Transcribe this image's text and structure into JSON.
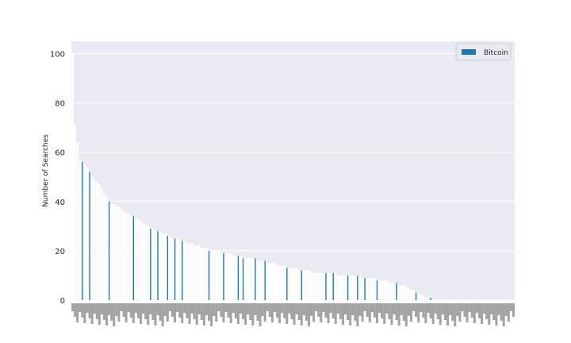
{
  "chart_data": {
    "type": "bar",
    "ylabel": "Number of Searches",
    "xlabel": "",
    "ylim": [
      0,
      105
    ],
    "yticks": [
      0,
      20,
      40,
      60,
      80,
      100
    ],
    "grid": true,
    "legend_position": "top-right",
    "series": [
      {
        "name": "Bitcoin",
        "color": "#1f77b4",
        "values": [
          100,
          71,
          64,
          57,
          56,
          55,
          54,
          52,
          50,
          49,
          48,
          47,
          45,
          43,
          42,
          40,
          39,
          39,
          38,
          38,
          37,
          36,
          35,
          35,
          34,
          34,
          33,
          33,
          32,
          31,
          31,
          30,
          29,
          29,
          28,
          28,
          28,
          27,
          27,
          26,
          26,
          25,
          25,
          25,
          24,
          24,
          24,
          23,
          23,
          23,
          22,
          22,
          22,
          21,
          21,
          21,
          20,
          20,
          20,
          20,
          20,
          19,
          19,
          19,
          19,
          19,
          18,
          18,
          18,
          18,
          17,
          17,
          17,
          17,
          17,
          17,
          16,
          16,
          16,
          16,
          15,
          15,
          15,
          15,
          14,
          14,
          14,
          14,
          13,
          13,
          13,
          13,
          13,
          12,
          12,
          12,
          12,
          12,
          11,
          11,
          11,
          11,
          11,
          11,
          11,
          11,
          11,
          11,
          11,
          10,
          10,
          10,
          10,
          10,
          10,
          10,
          10,
          10,
          10,
          9,
          9,
          9,
          9,
          9,
          9,
          8,
          8,
          8,
          8,
          8,
          7,
          7,
          7,
          7,
          6,
          6,
          6,
          5,
          5,
          4,
          4,
          3,
          3,
          2,
          2,
          1,
          1,
          1,
          0,
          0,
          0,
          0,
          0,
          0,
          0,
          0,
          0,
          0,
          0,
          0,
          0,
          0,
          0,
          0,
          0,
          0,
          0,
          0,
          0,
          0,
          0,
          0,
          0,
          0,
          0,
          0,
          0,
          0,
          0,
          0,
          0,
          0
        ]
      }
    ],
    "highlighted_bars": [
      4,
      7,
      15,
      25,
      32,
      35,
      39,
      42,
      45,
      56,
      62,
      68,
      70,
      75,
      79,
      88,
      94,
      104,
      107,
      113,
      117,
      120,
      125,
      133,
      141,
      147
    ],
    "categories_legible": false
  }
}
